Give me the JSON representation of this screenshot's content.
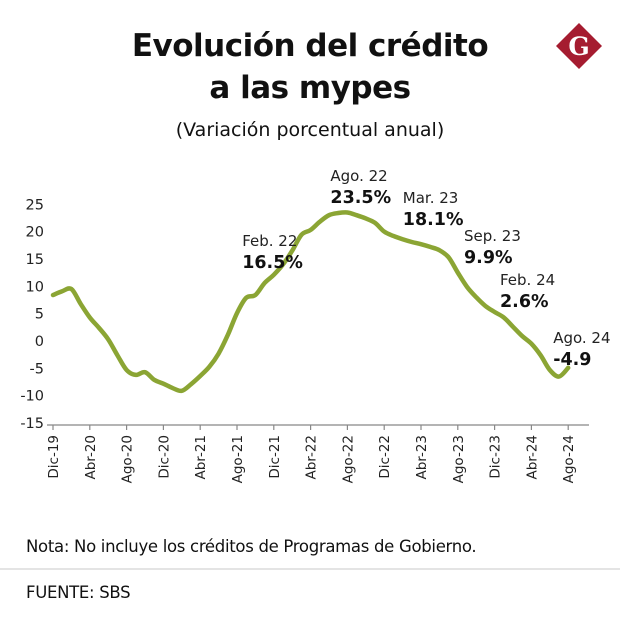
{
  "header": {
    "title_line1": "Evolución del crédito",
    "title_line2": "a las mypes",
    "subtitle": "(Variación porcentual anual)",
    "logo_letter": "G",
    "logo_color": "#A51C30"
  },
  "footer": {
    "note": "Nota: No incluye los créditos de Programas de Gobierno.",
    "source": "FUENTE: SBS"
  },
  "chart_data": {
    "type": "line",
    "title": "Evolución del crédito a las mypes",
    "subtitle": "(Variación porcentual anual)",
    "xlabel": "",
    "ylabel": "",
    "ylim": [
      -15,
      25
    ],
    "yticks": [
      25,
      20,
      15,
      10,
      5,
      0,
      -5,
      -10,
      -15
    ],
    "grid": false,
    "line_color": "#8BA534",
    "x_tick_labels": [
      "Dic-19",
      "Abr-20",
      "Ago-20",
      "Dic-20",
      "Abr-21",
      "Ago-21",
      "Dic-21",
      "Abr-22",
      "Ago-22",
      "Dic-22",
      "Abr-23",
      "Ago-23",
      "Dic-23",
      "Abr-24",
      "Ago-24"
    ],
    "x": [
      "Dic-19",
      "Ene-20",
      "Feb-20",
      "Mar-20",
      "Abr-20",
      "May-20",
      "Jun-20",
      "Jul-20",
      "Ago-20",
      "Sep-20",
      "Oct-20",
      "Nov-20",
      "Dic-20",
      "Ene-21",
      "Feb-21",
      "Mar-21",
      "Abr-21",
      "May-21",
      "Jun-21",
      "Jul-21",
      "Ago-21",
      "Sep-21",
      "Oct-21",
      "Nov-21",
      "Dic-21",
      "Ene-22",
      "Feb-22",
      "Mar-22",
      "Abr-22",
      "May-22",
      "Jun-22",
      "Jul-22",
      "Ago-22",
      "Sep-22",
      "Oct-22",
      "Nov-22",
      "Dic-22",
      "Ene-23",
      "Feb-23",
      "Mar-23",
      "Abr-23",
      "May-23",
      "Jun-23",
      "Jul-23",
      "Ago-23",
      "Sep-23",
      "Oct-23",
      "Nov-23",
      "Dic-23",
      "Ene-24",
      "Feb-24",
      "Mar-24",
      "Abr-24",
      "May-24",
      "Jun-24",
      "Jul-24",
      "Ago-24"
    ],
    "series": [
      {
        "name": "Crédito a mypes (var. % anual)",
        "values": [
          8.4,
          9.1,
          9.5,
          6.8,
          4.3,
          2.4,
          0.3,
          -2.6,
          -5.3,
          -6.2,
          -5.7,
          -7.1,
          -7.8,
          -8.6,
          -9.1,
          -7.9,
          -6.4,
          -4.7,
          -2.3,
          1.1,
          5.1,
          7.9,
          8.4,
          10.6,
          12.1,
          14.0,
          16.5,
          19.4,
          20.3,
          21.8,
          23.0,
          23.4,
          23.5,
          23.0,
          22.4,
          21.6,
          20.0,
          19.2,
          18.6,
          18.1,
          17.7,
          17.2,
          16.6,
          15.3,
          12.5,
          9.9,
          8.0,
          6.4,
          5.3,
          4.3,
          2.6,
          0.9,
          -0.5,
          -2.6,
          -5.3,
          -6.5,
          -4.9
        ]
      }
    ],
    "annotations": [
      {
        "month": "Feb. 22",
        "value_label": "16.5%",
        "x": "Feb-22",
        "value": 16.5
      },
      {
        "month": "Ago. 22",
        "value_label": "23.5%",
        "x": "Ago-22",
        "value": 23.5
      },
      {
        "month": "Mar. 23",
        "value_label": "18.1%",
        "x": "Mar-23",
        "value": 18.1
      },
      {
        "month": "Sep. 23",
        "value_label": "9.9%",
        "x": "Sep-23",
        "value": 9.9
      },
      {
        "month": "Feb. 24",
        "value_label": "2.6%",
        "x": "Feb-24",
        "value": 2.6
      },
      {
        "month": "Ago. 24",
        "value_label": "-4.9",
        "x": "Ago-24",
        "value": -4.9
      }
    ]
  }
}
